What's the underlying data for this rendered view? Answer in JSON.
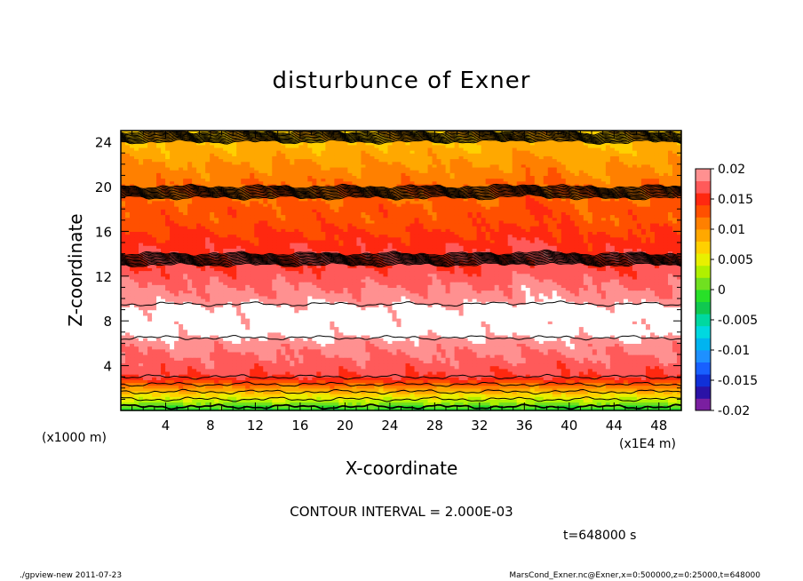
{
  "chart_data": {
    "type": "heatmap",
    "title": "disturbunce of Exner",
    "xlabel": "X-coordinate",
    "ylabel": "Z-coordinate",
    "x_unit": "(x1E4 m)",
    "y_unit": "(x1000 m)",
    "xlim": [
      0,
      50
    ],
    "ylim": [
      0,
      25
    ],
    "x_ticks": [
      4,
      8,
      12,
      16,
      20,
      24,
      28,
      32,
      36,
      40,
      44,
      48
    ],
    "y_ticks": [
      4,
      8,
      12,
      16,
      20,
      24
    ],
    "colorbar": {
      "labels": [
        "0.02",
        "0.015",
        "0.01",
        "0.005",
        "0",
        "-0.005",
        "-0.01",
        "-0.015",
        "-0.02"
      ],
      "levels": [
        -0.02,
        -0.018,
        -0.016,
        -0.014,
        -0.012,
        -0.01,
        -0.008,
        -0.006,
        -0.004,
        -0.002,
        0,
        0.002,
        0.004,
        0.006,
        0.008,
        0.01,
        0.012,
        0.014,
        0.016,
        0.018,
        0.02
      ],
      "colors": [
        "#7a1fa0",
        "#2a12a6",
        "#1030d8",
        "#1860ff",
        "#1e90ff",
        "#00b4f0",
        "#00d8e0",
        "#00d8a0",
        "#10c850",
        "#28e028",
        "#70e020",
        "#b0f000",
        "#e8f000",
        "#ffd000",
        "#ffa800",
        "#ff8000",
        "#ff5000",
        "#ff2810",
        "#ff5a5a",
        "#ff9090"
      ]
    },
    "contour_interval": 0.002,
    "profile_z": [
      0,
      1,
      2,
      3,
      4,
      5,
      6,
      7,
      8,
      9,
      10,
      11,
      12,
      13,
      14,
      15,
      16,
      17,
      18,
      19,
      20,
      21,
      22,
      23,
      24,
      25
    ],
    "profile_value": [
      -0.002,
      0.004,
      0.01,
      0.016,
      0.017,
      0.018,
      0.019,
      0.021,
      0.021,
      0.021,
      0.019,
      0.018,
      0.017,
      0.016,
      0.016,
      0.015,
      0.014,
      0.013,
      0.013,
      0.012,
      0.012,
      0.011,
      0.01,
      0.009,
      0.008,
      0.008
    ]
  },
  "labels": {
    "contour_interval": "CONTOUR INTERVAL = 2.000E-03",
    "time": "t=648000 s",
    "footer_left": "./gpview-new   2011-07-23",
    "footer_right": "MarsCond_Exner.nc@Exner,x=0:500000,z=0:25000,t=648000"
  }
}
